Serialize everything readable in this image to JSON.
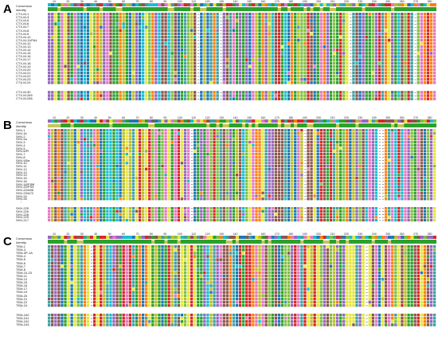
{
  "panels": [
    {
      "letter": "A",
      "header": {
        "consensus": "Consensus",
        "identity": "Identity"
      },
      "ticks": [
        "10",
        "20",
        "30",
        "40",
        "50",
        "60",
        "70",
        "80",
        "90",
        "100",
        "110",
        "120",
        "130",
        "140",
        "150",
        "160",
        "170",
        "180",
        "190",
        "200",
        "210",
        "220",
        "230",
        "240",
        "250",
        "260",
        "270",
        "280"
      ],
      "sequences": [
        "CTX-M-1",
        "CTX-M-3",
        "CTX-M-5",
        "CTX-M-6",
        "CTX-M-7",
        "CTX-M-8",
        "CTX-M-9",
        "CTX-M-10",
        "CTX-M-11/PA4",
        "CTX-M-12",
        "CTX-M-13",
        "CTX-M-14",
        "CTX-M-15",
        "CTX-M-16",
        "CTX-M-17",
        "CTX-M-18",
        "CTX-M-19",
        "CTX-M-20",
        "CTX-M-21",
        "CTX-M-22",
        "CTX-M-23",
        "CTX-M-24"
      ],
      "sequences_after": [
        "CTX-M-30",
        "CTX-M-265",
        "CTX-M-266"
      ],
      "ellipsis": "⋮"
    },
    {
      "letter": "B",
      "header": {
        "consensus": "Consensus",
        "identity": "Identity"
      },
      "ticks": [
        "10",
        "20",
        "30",
        "40",
        "50",
        "60",
        "70",
        "80",
        "90",
        "100",
        "110",
        "120",
        "130",
        "140",
        "150",
        "160",
        "170",
        "180",
        "190",
        "200",
        "210",
        "220",
        "230",
        "240",
        "250",
        "260",
        "270",
        "280"
      ],
      "sequences": [
        "SHV-1",
        "SHV-1b",
        "SHV-2",
        "SHV-2a",
        "SHV-3",
        "SHV-4",
        "SHV-5",
        "SHV-6/Pi",
        "SHV-7",
        "SHV-8",
        "SHV-9/5a",
        "SHV-10",
        "SHV-11",
        "SHV-12",
        "SHV-13",
        "SHV-14",
        "SHV-15",
        "SHV-16",
        "SHV-18/PI58",
        "SHV-20/PS4",
        "SHV-22/A56",
        "SHV-23/A72",
        "SHV-24",
        "SHV-26"
      ],
      "sequences_after": [
        "SHV-225",
        "SHV-226",
        "SHV-228",
        "SHV-229",
        "SHV-217"
      ],
      "ellipsis": "⋮"
    },
    {
      "letter": "C",
      "header": {
        "consensus": "Consensus",
        "identity": "Identity"
      },
      "ticks": [
        "10",
        "20",
        "30",
        "40",
        "50",
        "60",
        "70",
        "80",
        "90",
        "100",
        "110",
        "120",
        "130",
        "140",
        "150",
        "160",
        "170",
        "180",
        "190",
        "200",
        "210",
        "220",
        "230",
        "240",
        "250",
        "260",
        "270",
        "280"
      ],
      "sequences": [
        "TEM-1",
        "TEM-3",
        "TEM-3P-1A",
        "TEM-4",
        "TEM-5",
        "TEM-6",
        "TEM-7",
        "TEM-8",
        "TEM-10-23",
        "TEM-11",
        "TEM-12",
        "TEM-15",
        "TEM-16",
        "TEM-17",
        "TEM-19",
        "TEM-20",
        "TEM-21",
        "TEM-22",
        "TEM-24"
      ],
      "sequences_after": [
        "TEM-240",
        "TEM-241",
        "TEM-242",
        "TEM-243"
      ],
      "ellipsis": "⋮"
    }
  ],
  "colors": {
    "A": "#2ca02c",
    "C": "#1f77b4",
    "D": "#d62728",
    "E": "#e377c2",
    "G": "#ff7f0e",
    "H": "#17becf",
    "K": "#9467bd",
    "L": "#bcbd22",
    "M": "#8c564b",
    "consensus_bar": "#c5c55a",
    "identity_high": "#2ca02c",
    "identity_mid": "#c5c55a"
  }
}
